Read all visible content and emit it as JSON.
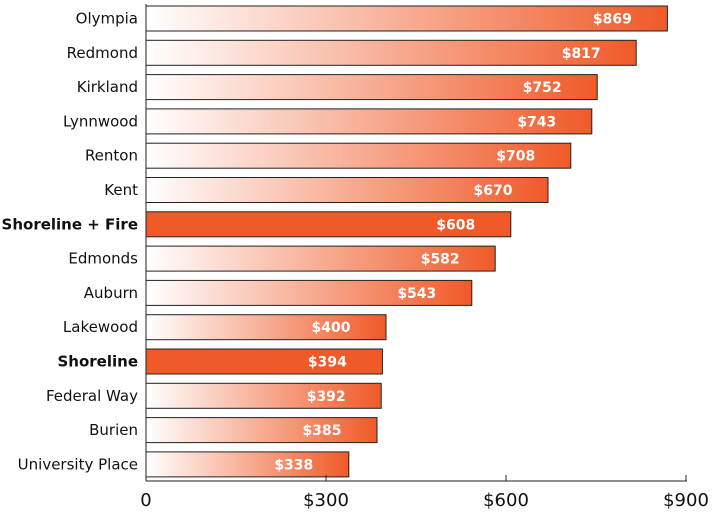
{
  "chart_data": {
    "type": "bar",
    "orientation": "horizontal",
    "categories": [
      "Olympia",
      "Redmond",
      "Kirkland",
      "Lynnwood",
      "Renton",
      "Kent",
      "Shoreline + Fire",
      "Edmonds",
      "Auburn",
      "Lakewood",
      "Shoreline",
      "Federal Way",
      "Burien",
      "University Place"
    ],
    "values": [
      869,
      817,
      752,
      743,
      708,
      670,
      608,
      582,
      543,
      400,
      394,
      392,
      385,
      338
    ],
    "value_labels": [
      "$869",
      "$817",
      "$752",
      "$743",
      "$708",
      "$670",
      "$608",
      "$582",
      "$543",
      "$400",
      "$394",
      "$392",
      "$385",
      "$338"
    ],
    "highlighted": [
      "Shoreline + Fire",
      "Shoreline"
    ],
    "xlim": [
      0,
      900
    ],
    "xticks": [
      0,
      300,
      600,
      900
    ],
    "xtick_labels": [
      "0",
      "$300",
      "$600",
      "$900"
    ],
    "title": "",
    "xlabel": "",
    "ylabel": "",
    "grid": false,
    "colors": {
      "gradient_start": "#ffffff",
      "gradient_end": "#f05a28",
      "highlight": "#f05a28",
      "bar_stroke": "#222222",
      "value_text": "#ffffff",
      "axis": "#222222"
    }
  }
}
